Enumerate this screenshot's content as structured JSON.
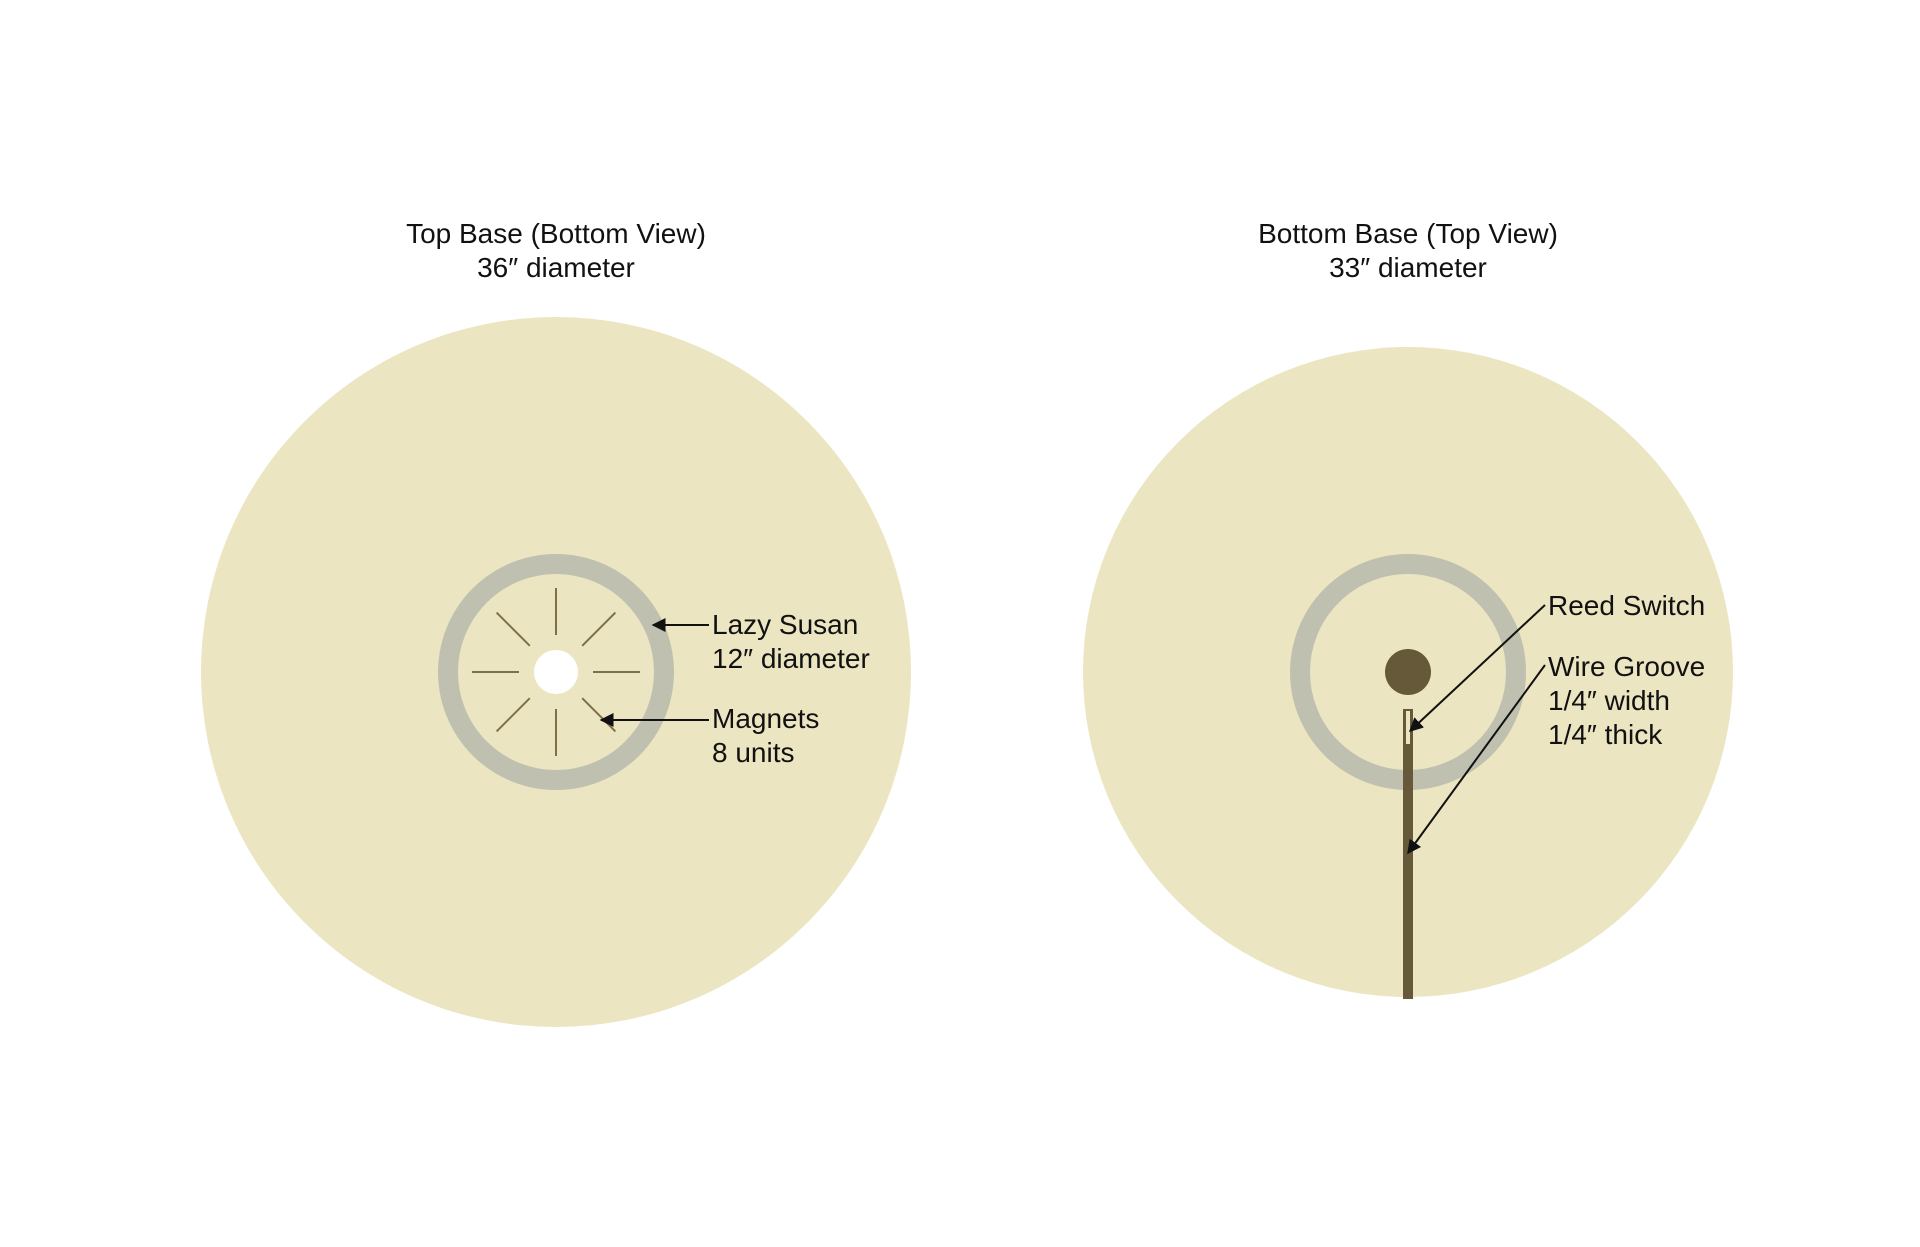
{
  "colors": {
    "disk": "#ebe5c1",
    "ring": "#bfc0af",
    "hole": "#ffffff",
    "magnet": "#7e7047",
    "dark": "#665939",
    "leader": "#111111"
  },
  "left": {
    "title": "Top Base (Bottom View)",
    "subtitle": "36″ diameter",
    "lazy_susan": {
      "label": "Lazy Susan",
      "detail": "12″ diameter"
    },
    "magnets": {
      "label": "Magnets",
      "detail": "8 units",
      "count": 8
    }
  },
  "right": {
    "title": "Bottom Base (Top View)",
    "subtitle": "33″ diameter",
    "reed_switch": {
      "label": "Reed Switch"
    },
    "wire_groove": {
      "label": "Wire Groove",
      "width": "1/4″ width",
      "thick": "1/4″ thick"
    }
  }
}
